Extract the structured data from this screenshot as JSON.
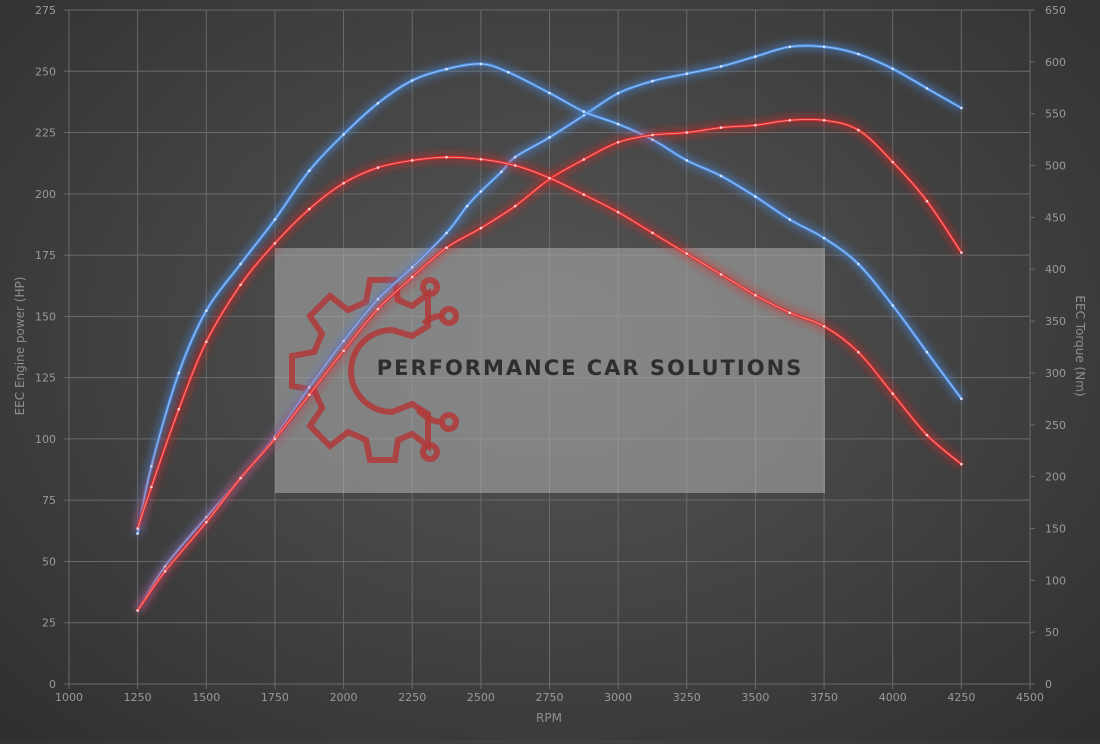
{
  "chart_data": {
    "type": "line",
    "xlabel": "RPM",
    "ylabel_left": "EEC Engine power (HP)",
    "ylabel_right": "EEC Torque (Nm)",
    "xlim": [
      1000,
      4500
    ],
    "xticks": [
      1000,
      1250,
      1500,
      1750,
      2000,
      2250,
      2500,
      2750,
      3000,
      3250,
      3500,
      3750,
      4000,
      4250,
      4500
    ],
    "ylim_left": [
      0,
      275
    ],
    "yticks_left": [
      0,
      25,
      50,
      75,
      100,
      125,
      150,
      175,
      200,
      225,
      250,
      275
    ],
    "ylim_right": [
      0,
      650
    ],
    "yticks_right": [
      0,
      50,
      100,
      150,
      200,
      250,
      300,
      350,
      400,
      450,
      500,
      550,
      600,
      650
    ],
    "grid": true,
    "legend": "none",
    "watermark_text": "PERFORMANCE CAR SOLUTIONS",
    "series": [
      {
        "color": "#4a90e8",
        "axis": "left",
        "x": [
          1250,
          1350,
          1500,
          1625,
          1750,
          1875,
          2000,
          2125,
          2250,
          2375,
          2450,
          2500,
          2575,
          2625,
          2750,
          2875,
          3000,
          3125,
          3250,
          3375,
          3500,
          3625,
          3750,
          3875,
          4000,
          4125,
          4250
        ],
        "values": [
          30,
          48,
          68,
          84,
          101,
          121,
          140,
          157,
          170,
          184,
          195,
          201,
          209,
          215,
          223,
          232,
          241,
          246,
          249,
          252,
          256,
          260,
          260,
          257,
          251,
          243,
          235
        ]
      },
      {
        "color": "#4a90e8",
        "axis": "right",
        "x": [
          1250,
          1300,
          1400,
          1500,
          1625,
          1750,
          1875,
          2000,
          2125,
          2250,
          2375,
          2500,
          2600,
          2750,
          2875,
          3000,
          3125,
          3250,
          3375,
          3500,
          3625,
          3750,
          3875,
          4000,
          4125,
          4250
        ],
        "values": [
          145,
          210,
          300,
          360,
          405,
          448,
          495,
          530,
          560,
          582,
          593,
          598,
          590,
          570,
          552,
          540,
          525,
          505,
          490,
          470,
          448,
          430,
          405,
          365,
          320,
          275
        ]
      },
      {
        "color": "#e02828",
        "axis": "left",
        "x": [
          1250,
          1350,
          1500,
          1625,
          1750,
          1875,
          2000,
          2125,
          2250,
          2375,
          2500,
          2625,
          2750,
          2875,
          3000,
          3125,
          3250,
          3375,
          3500,
          3625,
          3750,
          3875,
          4000,
          4125,
          4250
        ],
        "values": [
          30,
          46,
          66,
          84,
          100,
          118,
          136,
          153,
          166,
          178,
          186,
          195,
          206,
          214,
          221,
          224,
          225,
          227,
          228,
          230,
          230,
          226,
          213,
          197,
          176
        ]
      },
      {
        "color": "#e02828",
        "axis": "right",
        "x": [
          1250,
          1300,
          1400,
          1500,
          1625,
          1750,
          1875,
          2000,
          2125,
          2250,
          2375,
          2500,
          2625,
          2750,
          2875,
          3000,
          3125,
          3250,
          3375,
          3500,
          3625,
          3750,
          3875,
          4000,
          4125,
          4250
        ],
        "values": [
          150,
          190,
          265,
          330,
          385,
          425,
          458,
          483,
          498,
          505,
          508,
          506,
          500,
          488,
          472,
          455,
          435,
          415,
          395,
          375,
          358,
          345,
          320,
          280,
          240,
          212
        ]
      }
    ]
  }
}
